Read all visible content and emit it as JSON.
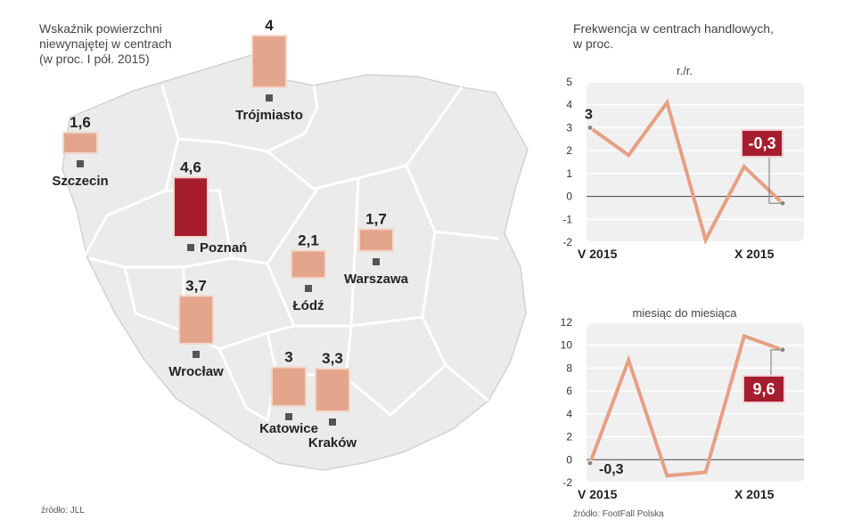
{
  "map": {
    "title_lines": [
      "Wskaźnik powierzchni",
      "niewynajętej w centrach",
      "(w proc. I pół. 2015)"
    ],
    "source": "źródło: JLL"
  },
  "right": {
    "title_lines": [
      "Frekwencja w centrach handlowych,",
      "w proc."
    ],
    "source": "źródło: FootFall Polska"
  },
  "colors": {
    "bar": "#e3a68d",
    "bar_highlight": "#a51d2e",
    "line": "#e6a083",
    "map_fill": "#ebebeb",
    "map_border": "#ffffff",
    "label_box": "#a51d2e"
  },
  "chart_data": [
    {
      "type": "bar",
      "title": "Wskaźnik powierzchni niewynajętej w centrach (w proc. I pół. 2015)",
      "categories": [
        "Trójmiasto",
        "Szczecin",
        "Poznań",
        "Łódź",
        "Warszawa",
        "Wrocław",
        "Katowice",
        "Kraków"
      ],
      "values": [
        4,
        1.6,
        4.6,
        2.1,
        1.7,
        3.7,
        3,
        3.3
      ],
      "value_labels": [
        "4",
        "1,6",
        "4,6",
        "2,1",
        "1,7",
        "3,7",
        "3",
        "3,3"
      ],
      "highlight": "Poznań"
    },
    {
      "type": "line",
      "title": "r./r.",
      "x": [
        5,
        6,
        7,
        8,
        9,
        10
      ],
      "y": [
        3,
        1.8,
        4.1,
        -1.9,
        1.3,
        -0.3
      ],
      "xlabels": [
        "V 2015",
        "X 2015"
      ],
      "ylim": [
        -2,
        5
      ],
      "yticks": [
        -2,
        -1,
        0,
        1,
        2,
        3,
        4,
        5
      ],
      "grid": true,
      "start_label": "3",
      "end_label": "-0,3"
    },
    {
      "type": "line",
      "title": "miesiąc do miesiąca",
      "x": [
        5,
        6,
        7,
        8,
        9,
        10
      ],
      "y": [
        -0.3,
        8.7,
        -1.4,
        -1.1,
        10.8,
        9.6
      ],
      "xlabels": [
        "V 2015",
        "X 2015"
      ],
      "ylim": [
        -2,
        12
      ],
      "yticks": [
        -2,
        0,
        2,
        4,
        6,
        8,
        10,
        12
      ],
      "grid": true,
      "start_label": "-0,3",
      "end_label": "9,6"
    }
  ]
}
